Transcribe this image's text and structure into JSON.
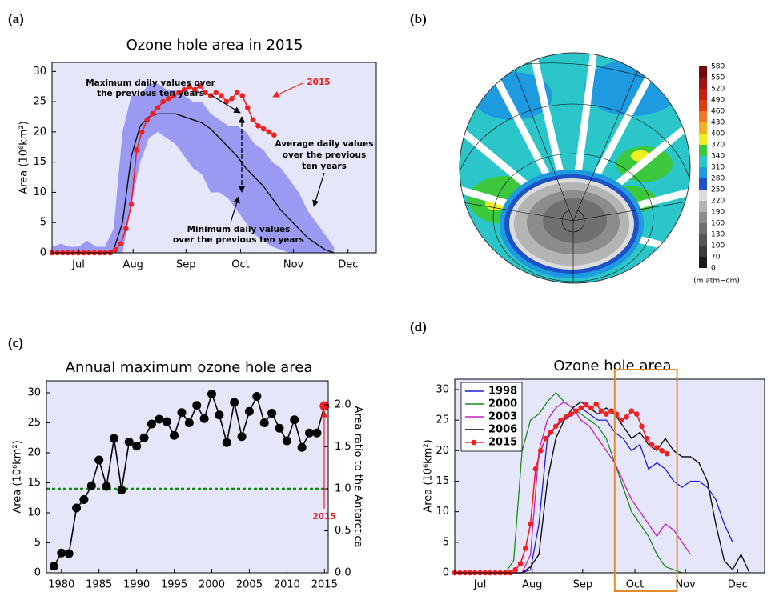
{
  "chart_data": [
    {
      "type": "line",
      "label": "(a)",
      "title": "Ozone hole area in 2015",
      "y_label": "Area (10⁶km²)",
      "background": "#e6e6fb",
      "xlim": [
        0,
        184
      ],
      "xticks": [
        {
          "value": 15,
          "label": "Jul"
        },
        {
          "value": 46,
          "label": "Aug"
        },
        {
          "value": 76,
          "label": "Sep"
        },
        {
          "value": 107,
          "label": "Oct"
        },
        {
          "value": 137,
          "label": "Nov"
        },
        {
          "value": 168,
          "label": "Dec"
        }
      ],
      "ylim": [
        0,
        31.5
      ],
      "yticks": [
        0,
        5,
        10,
        15,
        20,
        25,
        30
      ],
      "band": {
        "color": "#9a9af2",
        "x": [
          0,
          5,
          10,
          15,
          20,
          25,
          30,
          35,
          40,
          45,
          50,
          55,
          60,
          65,
          70,
          75,
          80,
          85,
          90,
          95,
          100,
          105,
          110,
          115,
          120,
          125,
          130,
          135,
          140,
          145,
          150,
          155,
          160
        ],
        "upper": [
          1,
          1.5,
          1,
          1,
          2,
          1,
          1,
          4,
          20,
          26,
          26,
          28,
          28,
          27,
          27,
          26,
          25,
          25,
          23,
          22,
          21,
          21,
          20,
          18,
          17,
          15,
          14,
          12,
          10,
          7,
          5,
          3,
          1
        ],
        "lower": [
          0,
          0,
          0,
          0,
          0,
          0,
          0,
          0,
          0,
          8,
          15,
          19,
          20,
          19,
          18,
          16,
          14,
          13,
          10,
          10,
          9,
          7,
          5,
          3,
          2,
          1,
          0.5,
          0,
          0,
          0,
          0,
          0,
          0
        ]
      },
      "series": [
        {
          "color": "#000000",
          "marker": false,
          "x": [
            0,
            5,
            10,
            15,
            20,
            25,
            30,
            35,
            40,
            45,
            50,
            55,
            60,
            65,
            70,
            75,
            80,
            85,
            90,
            95,
            100,
            105,
            110,
            115,
            120,
            125,
            130,
            135,
            140,
            145,
            150,
            155,
            160
          ],
          "values": [
            0,
            0,
            0,
            0,
            0,
            0,
            0,
            0.5,
            5,
            16,
            21,
            22.5,
            23,
            23,
            23,
            22.5,
            22,
            21.5,
            20.5,
            19,
            17.5,
            16,
            14,
            12.5,
            11,
            9,
            7,
            5.5,
            4,
            2.5,
            1.5,
            0.5,
            0
          ]
        },
        {
          "color": "#f02020",
          "marker": true,
          "x": [
            0,
            3,
            6,
            9,
            12,
            15,
            18,
            21,
            24,
            27,
            30,
            33,
            36,
            39,
            42,
            45,
            48,
            51,
            54,
            57,
            60,
            63,
            66,
            69,
            72,
            75,
            78,
            81,
            84,
            87,
            90,
            93,
            96,
            99,
            102,
            105,
            108,
            111,
            114,
            117,
            120,
            123,
            126
          ],
          "values": [
            0,
            0,
            0,
            0,
            0,
            0,
            0,
            0,
            0,
            0,
            0,
            0,
            0.5,
            1.5,
            4,
            8,
            17,
            20,
            22,
            23,
            24,
            25,
            25.5,
            26,
            26.5,
            27,
            27.5,
            27,
            27.6,
            26.5,
            26,
            26.5,
            26,
            25,
            25.5,
            26.5,
            26,
            24,
            22,
            21,
            20.5,
            20,
            19.5
          ]
        }
      ],
      "annotations": [
        {
          "lines": [
            "Maximum daily values over",
            "the previous ten years"
          ],
          "color": "#000000"
        },
        {
          "lines": [
            "2015"
          ],
          "color": "#f02020"
        },
        {
          "lines": [
            "Average daily values",
            "over the previous",
            "ten years"
          ],
          "color": "#000000"
        },
        {
          "lines": [
            "Minimum daily values",
            "over the previous ten years"
          ],
          "color": "#000000"
        }
      ]
    },
    {
      "type": "map",
      "label": "(b)",
      "colorbar": {
        "unit": "(m atm−cm)",
        "ticks": [
          0,
          70,
          100,
          130,
          160,
          190,
          220,
          250,
          280,
          310,
          340,
          370,
          400,
          430,
          460,
          490,
          520,
          550,
          580
        ],
        "colors": [
          "#1a1a1a",
          "#3a3a3a",
          "#555555",
          "#707070",
          "#8c8c8c",
          "#b4b4b4",
          "#dcdcdc",
          "#1e50c8",
          "#1e9be0",
          "#2ac6c9",
          "#3cc83c",
          "#f0f020",
          "#f0b020",
          "#f07820",
          "#e03c14",
          "#c81e14",
          "#a01410",
          "#6e0a0a"
        ]
      }
    },
    {
      "type": "line",
      "label": "(c)",
      "title": "Annual maximum ozone hole area",
      "y_label": "Area (10⁶km²)",
      "y2_label": "Area ratio to the Antarctica",
      "background": "#e6e6fb",
      "x": [
        1979,
        1980,
        1981,
        1982,
        1983,
        1984,
        1985,
        1986,
        1987,
        1988,
        1989,
        1990,
        1991,
        1992,
        1993,
        1994,
        1995,
        1996,
        1997,
        1998,
        1999,
        2000,
        2001,
        2002,
        2003,
        2004,
        2005,
        2006,
        2007,
        2008,
        2009,
        2010,
        2011,
        2012,
        2013,
        2014,
        2015
      ],
      "xlim": [
        1978,
        2015.5
      ],
      "xticks": [
        1980,
        1985,
        1990,
        1995,
        2000,
        2005,
        2010,
        2015
      ],
      "ylim": [
        0,
        32
      ],
      "yticks": [
        0,
        5,
        10,
        15,
        20,
        25,
        30
      ],
      "y2lim": [
        0,
        2.286
      ],
      "y2ticks": [
        {
          "value": 0,
          "label": "0.0"
        },
        0.5,
        {
          "value": 1,
          "label": "1.0"
        },
        1.5,
        {
          "value": 2,
          "label": "2.0"
        }
      ],
      "ref_line": {
        "value": 14,
        "color": "#108a10"
      },
      "last_point_color": "#f02020",
      "series": [
        {
          "color": "#000000",
          "marker": true,
          "values": [
            1.1,
            3.3,
            3.2,
            10.8,
            12.2,
            14.5,
            18.8,
            14.4,
            22.4,
            13.8,
            21.8,
            21.1,
            22.5,
            24.8,
            25.6,
            25.2,
            22.9,
            26.7,
            25.0,
            27.9,
            25.7,
            29.8,
            26.3,
            21.7,
            28.4,
            22.7,
            26.9,
            29.4,
            25.0,
            26.6,
            24.1,
            22.0,
            25.5,
            20.9,
            23.3,
            23.3,
            27.8
          ]
        }
      ],
      "annotations": [
        {
          "lines": [
            "2015"
          ],
          "color": "#f02020"
        }
      ]
    },
    {
      "type": "line",
      "label": "(d)",
      "title": "Ozone hole area",
      "y_label": "Area (10⁶km²)",
      "background": "#e6e6fb",
      "legend": "upper left",
      "xlim": [
        0,
        184
      ],
      "xticks": [
        {
          "value": 15,
          "label": "Jul"
        },
        {
          "value": 46,
          "label": "Aug"
        },
        {
          "value": 76,
          "label": "Sep"
        },
        {
          "value": 107,
          "label": "Oct"
        },
        {
          "value": 137,
          "label": "Nov"
        },
        {
          "value": 168,
          "label": "Dec"
        }
      ],
      "ylim": [
        0,
        31.7
      ],
      "yticks": [
        0,
        5,
        10,
        15,
        20,
        25,
        30
      ],
      "highlight": {
        "x": [
          95,
          132
        ],
        "color": "#e88a2c"
      },
      "series": [
        {
          "name": "1998",
          "color": "#1c1cd8",
          "marker": false,
          "x": [
            0,
            5,
            10,
            15,
            20,
            25,
            30,
            35,
            40,
            45,
            50,
            55,
            60,
            65,
            70,
            75,
            80,
            85,
            90,
            95,
            100,
            105,
            110,
            115,
            120,
            125,
            130,
            135,
            140,
            145,
            150,
            155,
            160,
            165
          ],
          "values": [
            0,
            0,
            0,
            0,
            0,
            0,
            0,
            0,
            0,
            0.5,
            8,
            22,
            24,
            25,
            26,
            27,
            26,
            25,
            25,
            23,
            22,
            20,
            21,
            17,
            18,
            17,
            15,
            14,
            15,
            15,
            14,
            12,
            8,
            5
          ]
        },
        {
          "name": "2000",
          "color": "#1a8a1a",
          "marker": false,
          "x": [
            0,
            5,
            10,
            15,
            20,
            25,
            30,
            35,
            40,
            45,
            50,
            55,
            60,
            65,
            70,
            75,
            80,
            85,
            90,
            95,
            100,
            105,
            110,
            115,
            120,
            125,
            130,
            135
          ],
          "values": [
            0,
            0,
            0,
            0,
            0,
            0,
            0,
            2,
            20,
            25,
            26,
            28,
            29.5,
            28,
            27,
            26,
            25,
            24,
            22,
            18,
            14,
            10,
            8,
            6,
            3,
            1,
            0.5,
            0
          ]
        },
        {
          "name": "2003",
          "color": "#c020c0",
          "marker": false,
          "x": [
            0,
            5,
            10,
            15,
            20,
            25,
            30,
            35,
            40,
            45,
            50,
            55,
            60,
            65,
            70,
            75,
            80,
            85,
            90,
            95,
            100,
            105,
            110,
            115,
            120,
            125,
            130,
            135,
            140
          ],
          "values": [
            0,
            0,
            0,
            0,
            0,
            0,
            0,
            0,
            0,
            3,
            20,
            25,
            27,
            28,
            27,
            25,
            24,
            22,
            20,
            18,
            15,
            12,
            10,
            8,
            6,
            8,
            7,
            5,
            3
          ]
        },
        {
          "name": "2006",
          "color": "#000000",
          "marker": false,
          "x": [
            0,
            5,
            10,
            15,
            20,
            25,
            30,
            35,
            40,
            45,
            50,
            55,
            60,
            65,
            70,
            75,
            80,
            85,
            90,
            95,
            100,
            105,
            110,
            115,
            120,
            125,
            130,
            135,
            140,
            145,
            150,
            155,
            160,
            165,
            170,
            175
          ],
          "values": [
            0,
            0,
            0,
            0,
            0,
            0,
            0,
            0,
            0,
            1,
            3,
            15,
            22,
            25,
            27,
            28,
            27,
            26,
            27,
            26,
            24,
            22,
            23,
            21,
            20,
            22,
            20,
            19,
            19,
            18,
            15,
            8,
            2,
            0.5,
            3,
            0
          ]
        },
        {
          "name": "2015",
          "color": "#f02020",
          "marker": true,
          "x": [
            0,
            3,
            6,
            9,
            12,
            15,
            18,
            21,
            24,
            27,
            30,
            33,
            36,
            39,
            42,
            45,
            48,
            51,
            54,
            57,
            60,
            63,
            66,
            69,
            72,
            75,
            78,
            81,
            84,
            87,
            90,
            93,
            96,
            99,
            102,
            105,
            108,
            111,
            114,
            117,
            120,
            123,
            126
          ],
          "values": [
            0,
            0,
            0,
            0,
            0,
            0,
            0,
            0,
            0,
            0,
            0,
            0,
            0.5,
            1.5,
            4,
            8,
            17,
            20,
            22,
            23,
            24,
            25,
            25.5,
            26,
            26.5,
            27,
            27.5,
            27,
            27.6,
            26.5,
            26,
            26.5,
            26,
            25,
            25.5,
            26.5,
            26,
            24,
            22,
            21,
            20.5,
            20,
            19.5
          ]
        }
      ]
    }
  ]
}
